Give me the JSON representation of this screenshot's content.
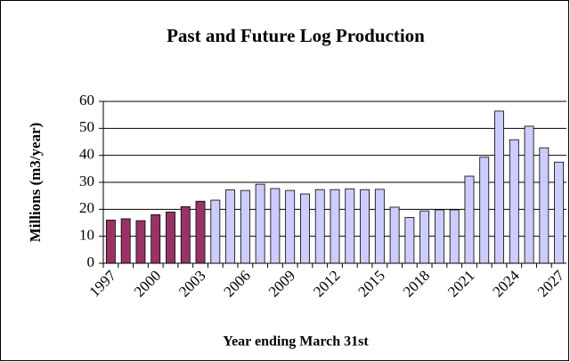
{
  "chart_data": {
    "type": "bar",
    "title": "Past and Future Log Production",
    "x_label": "Year ending March 31st",
    "y_label": "Millions (m3/year)",
    "categories": [
      "1997",
      null,
      null,
      "2000",
      null,
      null,
      "2003",
      null,
      null,
      "2006",
      null,
      null,
      "2009",
      null,
      null,
      "2012",
      null,
      null,
      "2015",
      null,
      null,
      "2018",
      null,
      null,
      "2021",
      null,
      null,
      "2024",
      null,
      null,
      "2027"
    ],
    "values": [
      16,
      16.5,
      15.8,
      18,
      19,
      21,
      23,
      23.4,
      27.2,
      27,
      29.3,
      27.7,
      27,
      25.7,
      27.3,
      27.3,
      27.6,
      27.3,
      27.4,
      20.8,
      17,
      19.4,
      19.8,
      19.8,
      32.3,
      39.3,
      56.4,
      45.8,
      50.8,
      42.8,
      37.5
    ],
    "bar_colors": [
      "#993366",
      "#993366",
      "#993366",
      "#993366",
      "#993366",
      "#993366",
      "#993366",
      "#ccccff",
      "#ccccff",
      "#ccccff",
      "#ccccff",
      "#ccccff",
      "#ccccff",
      "#ccccff",
      "#ccccff",
      "#ccccff",
      "#ccccff",
      "#ccccff",
      "#ccccff",
      "#ccccff",
      "#ccccff",
      "#ccccff",
      "#ccccff",
      "#ccccff",
      "#ccccff",
      "#ccccff",
      "#ccccff",
      "#ccccff",
      "#ccccff",
      "#ccccff",
      "#ccccff"
    ],
    "ylim": [
      0,
      60
    ],
    "yticks": [
      0,
      10,
      20,
      30,
      40,
      50,
      60
    ],
    "grid": true
  }
}
